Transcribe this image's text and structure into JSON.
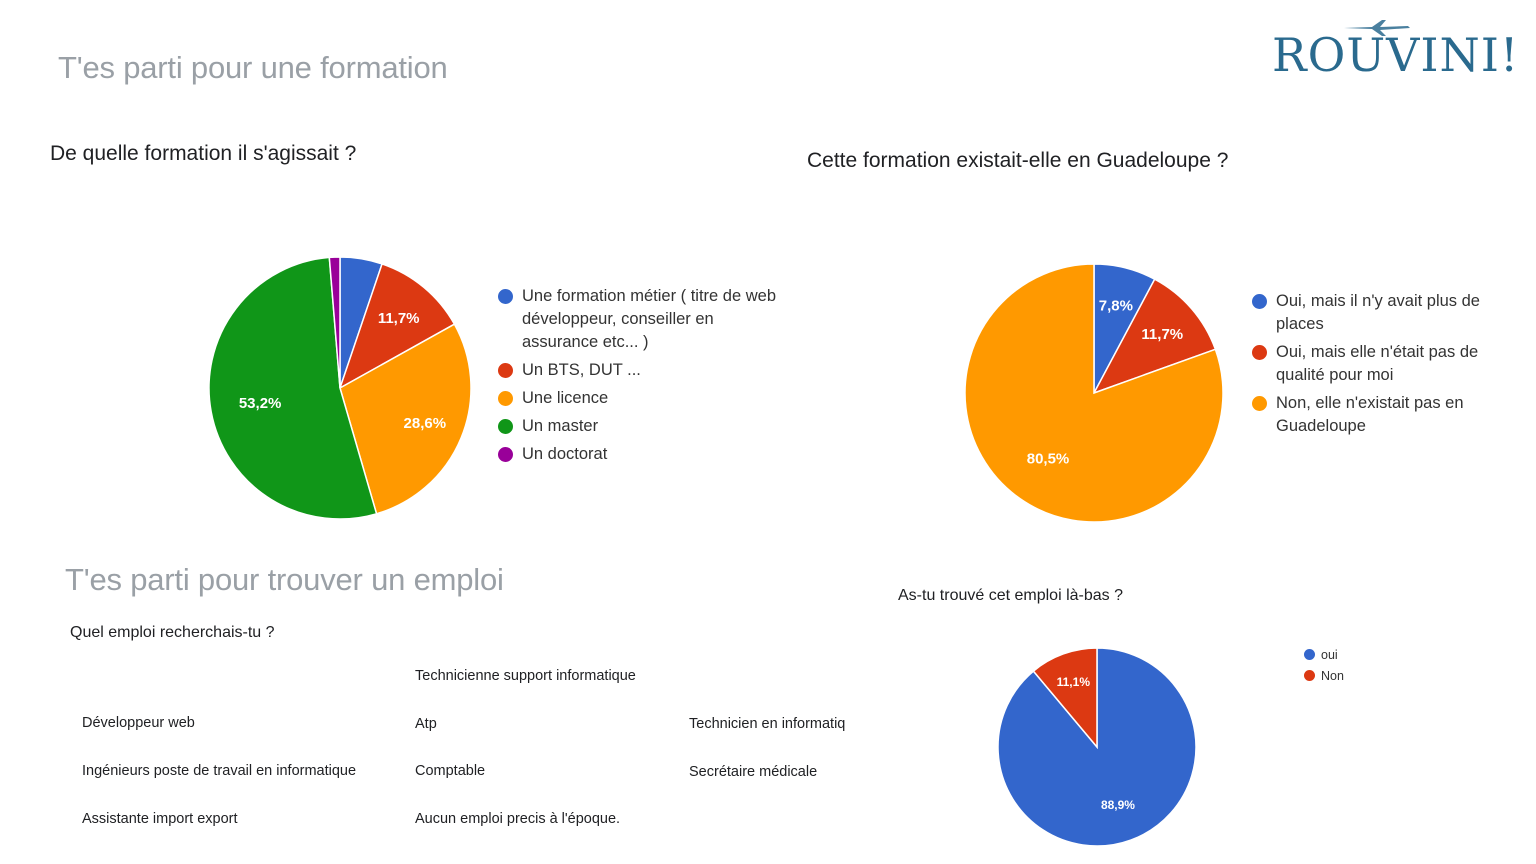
{
  "logo": {
    "text": "ROUVINI!",
    "icon": "airplane-icon"
  },
  "section1": {
    "title": "T'es parti pour une formation"
  },
  "section2": {
    "title": "T'es parti pour trouver un emploi"
  },
  "jobs": {
    "question": "Quel emploi recherchais-tu ?",
    "items": [
      "Technicienne support informatique",
      "Développeur web",
      "Atp",
      "Technicien en informatiq",
      "Ingénieurs poste de travail en informatique",
      "Comptable",
      "Secrétaire médicale",
      "Assistante import export",
      "Aucun emploi precis à l'époque."
    ]
  },
  "chart_data": [
    {
      "type": "pie",
      "title": "De quelle formation il s'agissait ?",
      "start_angle_deg": 90,
      "slices": [
        {
          "label": "Une formation métier ( titre de web développeur, conseiller en assurance etc... )",
          "value": 5.2,
          "color": "#3366cc",
          "data_label": ""
        },
        {
          "label": "Un BTS, DUT ...",
          "value": 11.7,
          "color": "#dc3912",
          "data_label": "11,7%"
        },
        {
          "label": "Une licence",
          "value": 28.6,
          "color": "#ff9900",
          "data_label": "28,6%"
        },
        {
          "label": "Un master",
          "value": 53.2,
          "color": "#109618",
          "data_label": "53,2%"
        },
        {
          "label": "Un doctorat",
          "value": 1.3,
          "color": "#990099",
          "data_label": ""
        }
      ],
      "legend_position": "right"
    },
    {
      "type": "pie",
      "title": "Cette formation existait-elle en Guadeloupe ?",
      "start_angle_deg": 90,
      "slices": [
        {
          "label": "Oui, mais il n'y avait plus de places",
          "value": 7.8,
          "color": "#3366cc",
          "data_label": "7,8%"
        },
        {
          "label": "Oui, mais elle n'était pas de qualité pour moi",
          "value": 11.7,
          "color": "#dc3912",
          "data_label": "11,7%"
        },
        {
          "label": "Non, elle n'existait pas en Guadeloupe",
          "value": 80.5,
          "color": "#ff9900",
          "data_label": "80,5%"
        }
      ],
      "legend_position": "right"
    },
    {
      "type": "pie",
      "title": "As-tu trouvé cet emploi là-bas ?",
      "start_angle_deg": 90,
      "slices": [
        {
          "label": "oui",
          "value": 88.9,
          "color": "#3366cc",
          "data_label": "88,9%"
        },
        {
          "label": "Non",
          "value": 11.1,
          "color": "#dc3912",
          "data_label": "11,1%"
        }
      ],
      "legend_position": "top-right"
    }
  ]
}
